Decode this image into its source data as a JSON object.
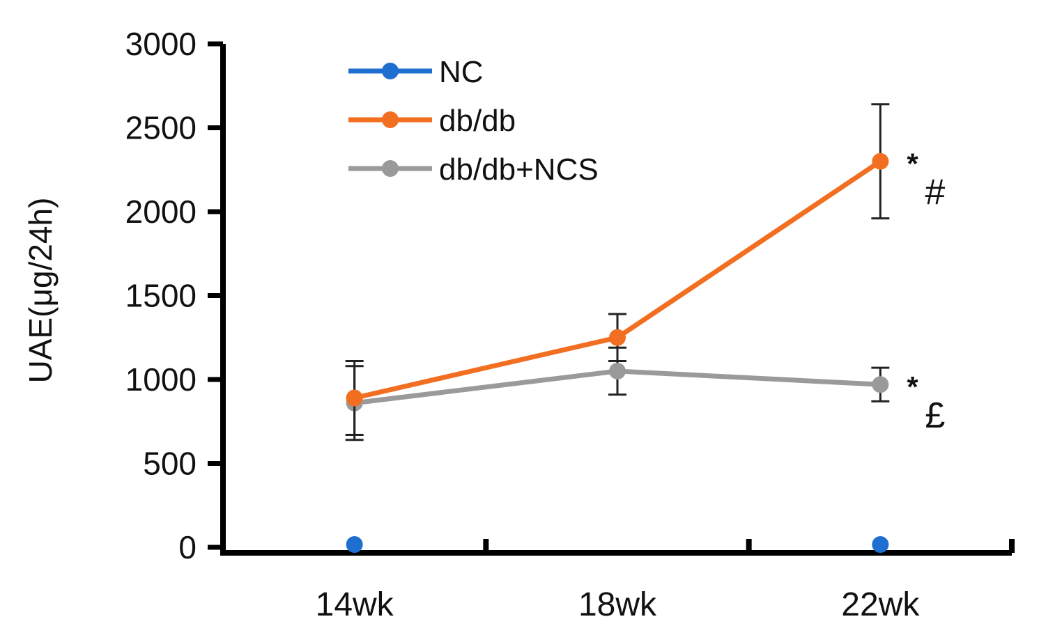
{
  "chart_data": {
    "type": "line",
    "title": "",
    "xlabel": "",
    "ylabel": "UAE(μg/24h)",
    "categories": [
      "14wk",
      "18wk",
      "22wk"
    ],
    "ylim": [
      0,
      3000
    ],
    "yticks": [
      0,
      500,
      1000,
      1500,
      2000,
      2500,
      3000
    ],
    "grid": false,
    "legend_position": "top-left",
    "series": [
      {
        "name": "NC",
        "color": "#1f6fd1",
        "values": [
          0,
          null,
          0
        ],
        "errors": [
          null,
          null,
          null
        ]
      },
      {
        "name": "db/db",
        "color": "#f26f21",
        "values": [
          890,
          1250,
          2300
        ],
        "errors": [
          220,
          140,
          340
        ]
      },
      {
        "name": "db/db+NCS",
        "color": "#9a9a9a",
        "values": [
          860,
          1050,
          970
        ],
        "errors": [
          220,
          140,
          100
        ]
      }
    ],
    "annotations": [
      {
        "series": "db/db",
        "category": "22wk",
        "star": "*",
        "symbol": "#"
      },
      {
        "series": "db/db+NCS",
        "category": "22wk",
        "star": "*",
        "symbol": "£"
      }
    ]
  }
}
